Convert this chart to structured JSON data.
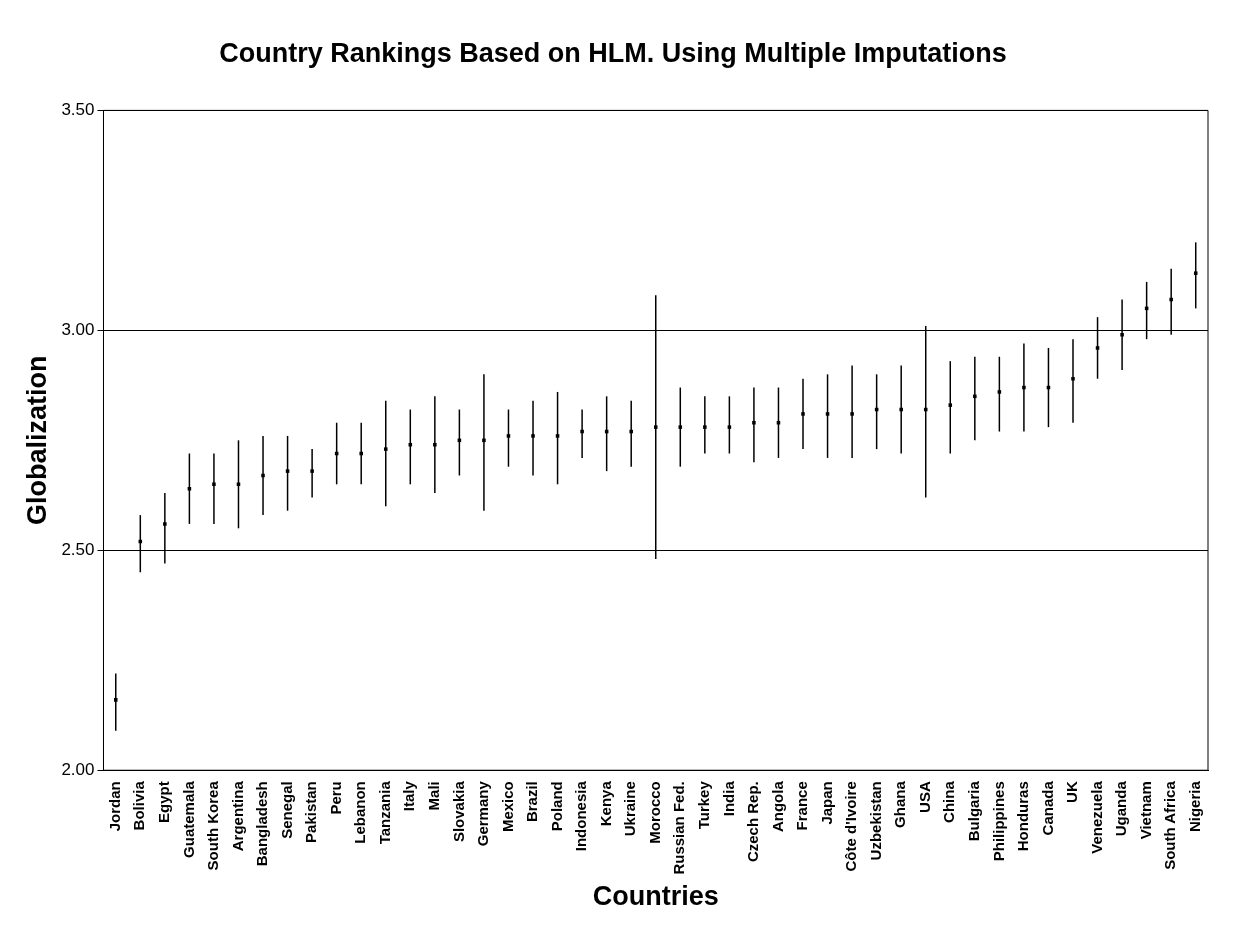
{
  "chart_data": {
    "type": "scatter",
    "title": "Country Rankings Based on HLM. Using Multiple Imputations",
    "xlabel": "Countries",
    "ylabel": "Globalization",
    "categories": [
      "Jordan",
      "Bolivia",
      "Egypt",
      "Guatemala",
      "South Korea",
      "Argentina",
      "Bangladesh",
      "Senegal",
      "Pakistan",
      "Peru",
      "Lebanon",
      "Tanzania",
      "Italy",
      "Mali",
      "Slovakia",
      "Germany",
      "Mexico",
      "Brazil",
      "Poland",
      "Indonesia",
      "Kenya",
      "Ukraine",
      "Morocco",
      "Russian Fed.",
      "Turkey",
      "India",
      "Czech Rep.",
      "Angola",
      "France",
      "Japan",
      "Côte d'Ivoire",
      "Uzbekistan",
      "Ghana",
      "USA",
      "China",
      "Bulgaria",
      "Philippines",
      "Honduras",
      "Canada",
      "UK",
      "Venezuela",
      "Uganda",
      "Vietnam",
      "South Africa",
      "Nigeria"
    ],
    "values": [
      2.16,
      2.52,
      2.56,
      2.64,
      2.65,
      2.65,
      2.67,
      2.68,
      2.68,
      2.72,
      2.72,
      2.73,
      2.74,
      2.74,
      2.75,
      2.75,
      2.76,
      2.76,
      2.76,
      2.77,
      2.77,
      2.77,
      2.78,
      2.78,
      2.78,
      2.78,
      2.79,
      2.79,
      2.81,
      2.81,
      2.81,
      2.82,
      2.82,
      2.82,
      2.83,
      2.85,
      2.86,
      2.87,
      2.87,
      2.89,
      2.96,
      2.99,
      3.05,
      3.07,
      3.13
    ],
    "errors": [
      [
        2.09,
        2.22
      ],
      [
        2.45,
        2.58
      ],
      [
        2.47,
        2.63
      ],
      [
        2.56,
        2.72
      ],
      [
        2.56,
        2.72
      ],
      [
        2.55,
        2.75
      ],
      [
        2.58,
        2.76
      ],
      [
        2.59,
        2.76
      ],
      [
        2.62,
        2.73
      ],
      [
        2.65,
        2.79
      ],
      [
        2.65,
        2.79
      ],
      [
        2.6,
        2.84
      ],
      [
        2.65,
        2.82
      ],
      [
        2.63,
        2.85
      ],
      [
        2.67,
        2.82
      ],
      [
        2.59,
        2.9
      ],
      [
        2.69,
        2.82
      ],
      [
        2.67,
        2.84
      ],
      [
        2.65,
        2.86
      ],
      [
        2.71,
        2.82
      ],
      [
        2.68,
        2.85
      ],
      [
        2.69,
        2.84
      ],
      [
        2.48,
        3.08
      ],
      [
        2.69,
        2.87
      ],
      [
        2.72,
        2.85
      ],
      [
        2.72,
        2.85
      ],
      [
        2.7,
        2.87
      ],
      [
        2.71,
        2.87
      ],
      [
        2.73,
        2.89
      ],
      [
        2.71,
        2.9
      ],
      [
        2.71,
        2.92
      ],
      [
        2.73,
        2.9
      ],
      [
        2.72,
        2.92
      ],
      [
        2.62,
        3.01
      ],
      [
        2.72,
        2.93
      ],
      [
        2.75,
        2.94
      ],
      [
        2.77,
        2.94
      ],
      [
        2.77,
        2.97
      ],
      [
        2.78,
        2.96
      ],
      [
        2.79,
        2.98
      ],
      [
        2.89,
        3.03
      ],
      [
        2.91,
        3.07
      ],
      [
        2.98,
        3.11
      ],
      [
        2.99,
        3.14
      ],
      [
        3.05,
        3.2
      ]
    ],
    "color": "#000000",
    "ylim": [
      2,
      3.5
    ],
    "yticks": [
      {
        "value": 2,
        "label": "2.00"
      },
      {
        "value": 2.5,
        "label": "2.50"
      },
      {
        "value": 3,
        "label": "3.00"
      },
      {
        "value": 3.5,
        "label": "3.50"
      }
    ],
    "grid": "y",
    "marker": "square"
  }
}
